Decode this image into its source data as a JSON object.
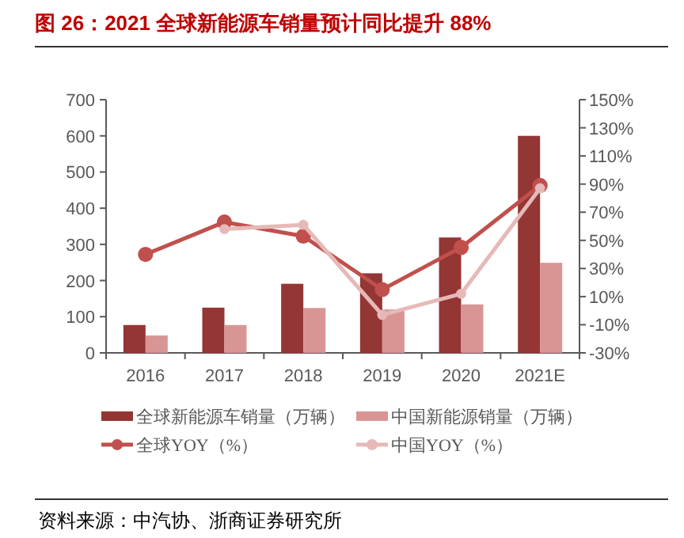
{
  "chart_data": {
    "type": "bar",
    "title": "图 26：2021 全球新能源车销量预计同比提升 88%",
    "categories": [
      "2016",
      "2017",
      "2018",
      "2019",
      "2020",
      "2021E"
    ],
    "series": [
      {
        "name": "全球新能源车销量（万辆）",
        "color": "#943634",
        "values": [
          77,
          125,
          191,
          220,
          319,
          600
        ]
      },
      {
        "name": "中国新能源销量（万辆）",
        "color": "#d99594",
        "values": [
          48,
          77,
          124,
          120,
          134,
          249
        ]
      },
      {
        "name": "全球YOY（%）",
        "type": "line",
        "axis": "y2",
        "color": "#c0504d",
        "values": [
          40,
          63,
          53,
          15,
          45,
          89
        ]
      },
      {
        "name": "中国YOY（%）",
        "type": "line",
        "axis": "y2",
        "color": "#e6b9b8",
        "values": [
          null,
          58,
          61,
          -3,
          12,
          87
        ]
      }
    ],
    "ylim": [
      0,
      700
    ],
    "yticks": [
      0,
      100,
      200,
      300,
      400,
      500,
      600,
      700
    ],
    "y2lim": [
      -30,
      150
    ],
    "y2ticks": [
      {
        "value": -30,
        "label": "-30%"
      },
      {
        "value": -10,
        "label": "-10%"
      },
      {
        "value": 10,
        "label": "10%"
      },
      {
        "value": 30,
        "label": "30%"
      },
      {
        "value": 50,
        "label": "50%"
      },
      {
        "value": 70,
        "label": "70%"
      },
      {
        "value": 90,
        "label": "90%"
      },
      {
        "value": 110,
        "label": "110%"
      },
      {
        "value": 130,
        "label": "130%"
      },
      {
        "value": 150,
        "label": "150%"
      }
    ],
    "marker": "circle",
    "legend": "bottom",
    "grid": false,
    "annotations": [
      "资料来源：中汽协、浙商证券研究所"
    ]
  }
}
